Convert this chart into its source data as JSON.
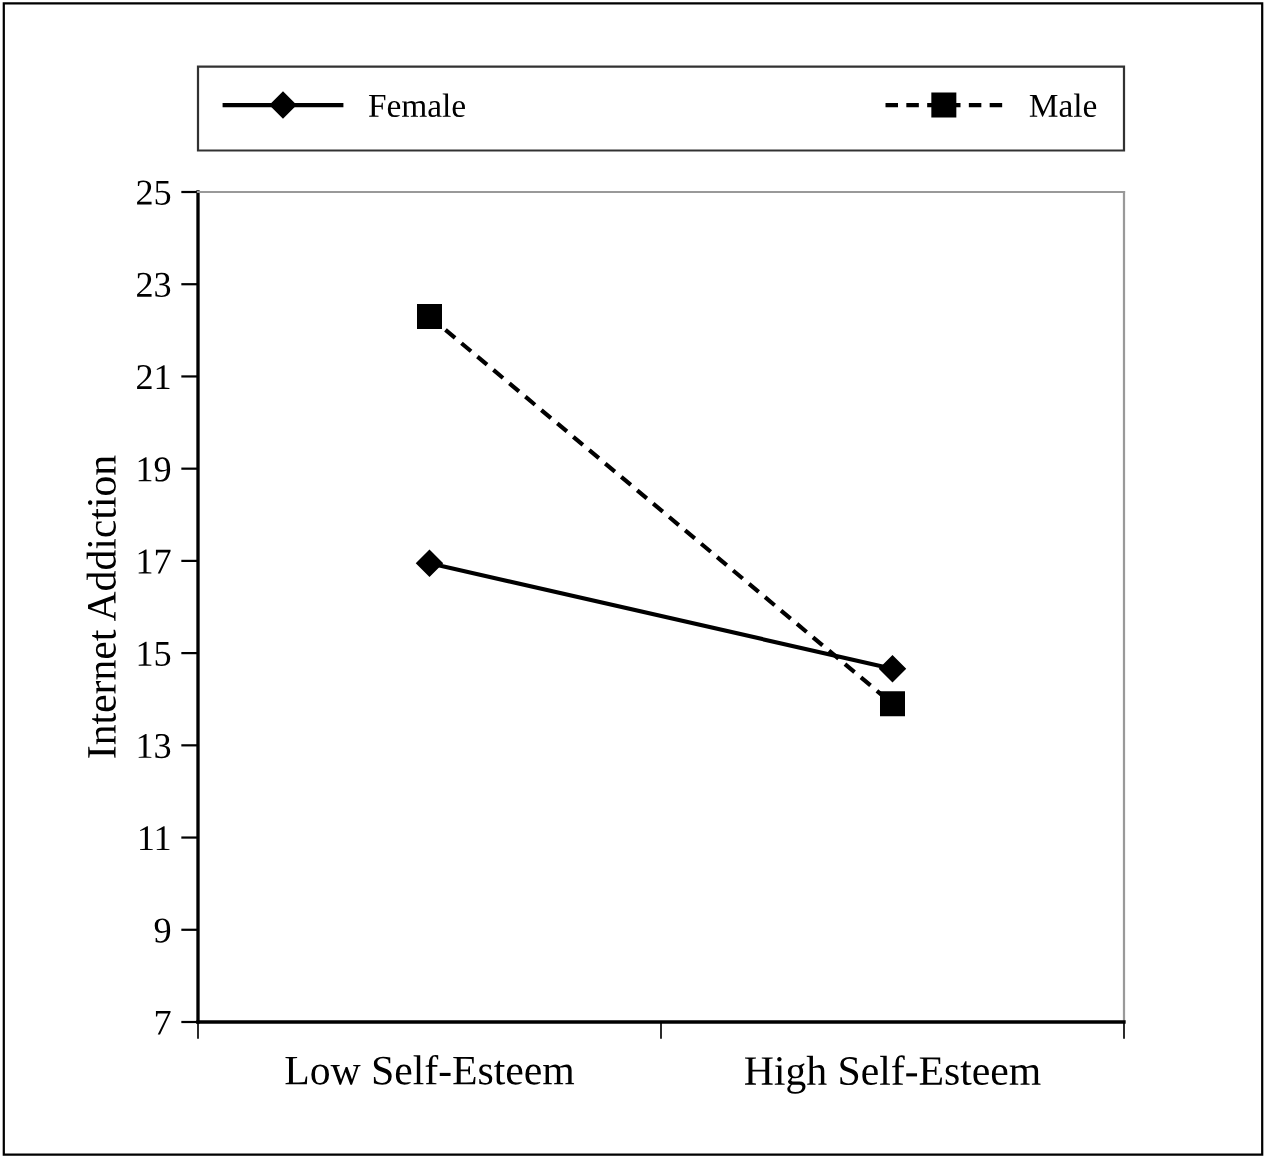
{
  "chart_data": {
    "type": "line",
    "ylabel": "Internet Addiction",
    "categories": [
      "Low Self-Esteem",
      "High Self-Esteem"
    ],
    "series": [
      {
        "name": "Female",
        "color": "#000000",
        "values": [
          16.95,
          14.66
        ],
        "marker": "diamond",
        "line_style": "solid"
      },
      {
        "name": "Male",
        "color": "#000000",
        "values": [
          22.3,
          13.9
        ],
        "marker": "square",
        "line_style": "dashed"
      }
    ],
    "ylim": [
      7,
      25
    ],
    "yticks": [
      7,
      9,
      11,
      13,
      15,
      17,
      19,
      21,
      23,
      25
    ],
    "grid": false,
    "legend": "top"
  }
}
